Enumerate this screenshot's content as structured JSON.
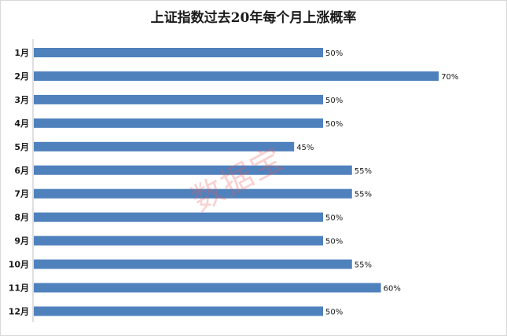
{
  "chart_data": {
    "type": "bar",
    "orientation": "horizontal",
    "title": "上证指数过去20年每个月上涨概率",
    "categories": [
      "1月",
      "2月",
      "3月",
      "4月",
      "5月",
      "6月",
      "7月",
      "8月",
      "9月",
      "10月",
      "11月",
      "12月"
    ],
    "values": [
      50,
      70,
      50,
      50,
      45,
      55,
      55,
      50,
      50,
      55,
      60,
      50
    ],
    "value_labels": [
      "50%",
      "70%",
      "50%",
      "50%",
      "45%",
      "55%",
      "55%",
      "50%",
      "50%",
      "55%",
      "60%",
      "50%"
    ],
    "xlim": [
      0,
      100
    ],
    "bar_color": "#4f81bd",
    "grid": false,
    "legend": "none"
  },
  "watermark": {
    "text": "数据宝",
    "color": "#e85a5a"
  }
}
